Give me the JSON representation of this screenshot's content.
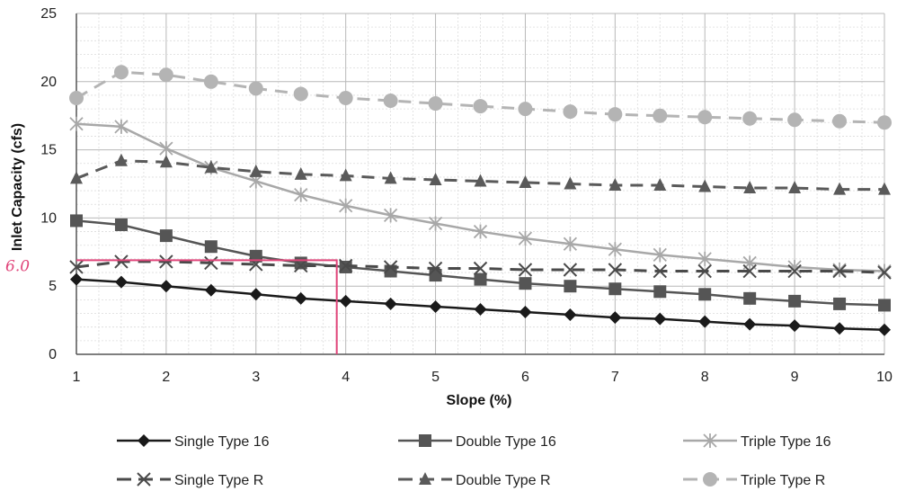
{
  "chart_data": {
    "type": "line",
    "xlabel": "Slope (%)",
    "ylabel": "Inlet Capacity (cfs)",
    "xlim": [
      1,
      10
    ],
    "ylim": [
      0,
      25
    ],
    "x_ticks": [
      1,
      2,
      3,
      4,
      5,
      6,
      7,
      8,
      9,
      10
    ],
    "y_ticks": [
      0,
      5,
      10,
      15,
      20,
      25
    ],
    "x_tick_labels": [
      "1",
      "2",
      "3",
      "4",
      "5",
      "6",
      "7",
      "8",
      "9",
      "10"
    ],
    "y_tick_labels": [
      "0",
      "5",
      "10",
      "15",
      "20",
      "25"
    ],
    "grid": true,
    "legend_position": "bottom",
    "x": [
      1,
      1.5,
      2,
      2.5,
      3,
      3.5,
      4,
      4.5,
      5,
      5.5,
      6,
      6.5,
      7,
      7.5,
      8,
      8.5,
      9,
      9.5,
      10
    ],
    "series": [
      {
        "name": "Single Type 16",
        "marker": "diamond",
        "line": "solid",
        "color": "#1a1a1a",
        "values": [
          5.5,
          5.3,
          5.0,
          4.7,
          4.4,
          4.1,
          3.9,
          3.7,
          3.5,
          3.3,
          3.1,
          2.9,
          2.7,
          2.6,
          2.4,
          2.2,
          2.1,
          1.9,
          1.8
        ]
      },
      {
        "name": "Double Type 16",
        "marker": "square",
        "line": "solid",
        "color": "#555555",
        "values": [
          9.8,
          9.5,
          8.7,
          7.9,
          7.2,
          6.7,
          6.4,
          6.1,
          5.8,
          5.5,
          5.2,
          5.0,
          4.8,
          4.6,
          4.4,
          4.1,
          3.9,
          3.7,
          3.6
        ]
      },
      {
        "name": "Triple Type 16",
        "marker": "star",
        "line": "solid",
        "color": "#a8a8a8",
        "values": [
          16.9,
          16.7,
          15.1,
          13.7,
          12.7,
          11.7,
          10.9,
          10.2,
          9.6,
          9.0,
          8.5,
          8.1,
          7.7,
          7.3,
          7.0,
          6.7,
          6.4,
          6.2,
          6.1
        ]
      },
      {
        "name": "Single Type R",
        "marker": "x",
        "line": "dashed",
        "color": "#4a4a4a",
        "values": [
          6.4,
          6.8,
          6.8,
          6.7,
          6.6,
          6.5,
          6.5,
          6.4,
          6.3,
          6.3,
          6.2,
          6.2,
          6.2,
          6.1,
          6.1,
          6.1,
          6.1,
          6.1,
          6.0
        ]
      },
      {
        "name": "Double Type R",
        "marker": "triangle",
        "line": "dashed",
        "color": "#5a5a5a",
        "values": [
          12.9,
          14.2,
          14.1,
          13.7,
          13.4,
          13.2,
          13.1,
          12.9,
          12.8,
          12.7,
          12.6,
          12.5,
          12.4,
          12.4,
          12.3,
          12.2,
          12.2,
          12.1,
          12.1
        ]
      },
      {
        "name": "Triple Type R",
        "marker": "circle",
        "line": "dashed",
        "color": "#b4b4b4",
        "values": [
          18.8,
          20.7,
          20.5,
          20.0,
          19.5,
          19.1,
          18.8,
          18.6,
          18.4,
          18.2,
          18.0,
          17.8,
          17.6,
          17.5,
          17.4,
          17.3,
          17.2,
          17.1,
          17.0
        ]
      }
    ],
    "annotations": [
      {
        "type": "handwritten",
        "text": "6.0",
        "color": "#e0457a",
        "note_points": [
          [
            1,
            6.9
          ],
          [
            3.9,
            6.9
          ],
          [
            3.9,
            0
          ]
        ]
      }
    ]
  }
}
